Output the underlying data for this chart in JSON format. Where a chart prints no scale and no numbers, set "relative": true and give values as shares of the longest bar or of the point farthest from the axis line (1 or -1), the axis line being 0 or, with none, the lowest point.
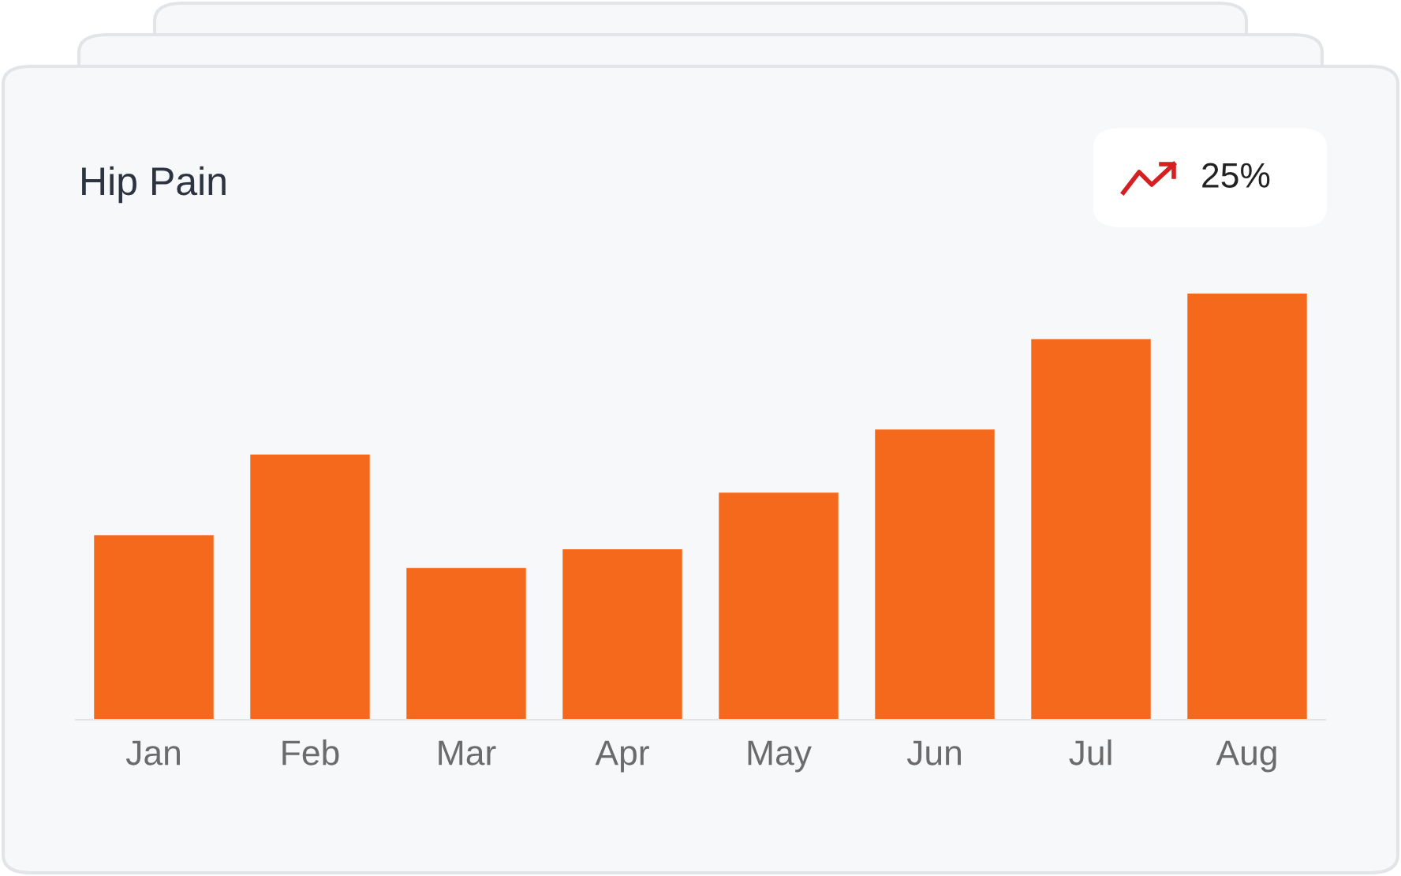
{
  "chart_data": {
    "type": "bar",
    "title": "Hip Pain",
    "relative": true,
    "categories": [
      "Jan",
      "Feb",
      "Mar",
      "Apr",
      "May",
      "Jun",
      "Jul",
      "Aug"
    ],
    "values": [
      0.433,
      0.622,
      0.356,
      0.4,
      0.533,
      0.681,
      0.893,
      1
    ],
    "color": "#f5691c",
    "annotations": [
      "25%"
    ],
    "grid": false,
    "legend": false
  }
}
